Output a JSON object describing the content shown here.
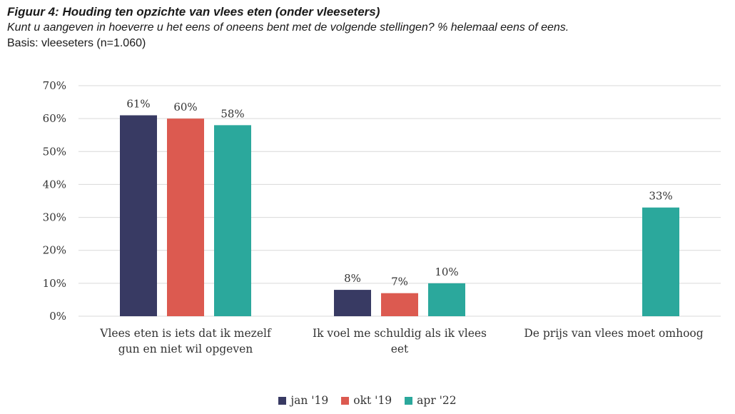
{
  "header": {
    "title": "Figuur 4: Houding ten opzichte van vlees eten (onder vleeseters)",
    "subtitle": "Kunt u aangeven in hoeverre u het eens of oneens bent met de volgende stellingen? % helemaal eens of eens.",
    "basis": "Basis: vleeseters (n=1.060)"
  },
  "chart_data": {
    "type": "bar",
    "title": "Figuur 4: Houding ten opzichte van vlees eten (onder vleeseters)",
    "categories": [
      [
        "Vlees eten is iets dat ik mezelf",
        "gun en niet wil opgeven"
      ],
      [
        "Ik voel me schuldig als ik vlees",
        "eet"
      ],
      [
        "De prijs van vlees moet omhoog"
      ]
    ],
    "series": [
      {
        "name": "jan '19",
        "color": "#383a63",
        "values": [
          61,
          8,
          null
        ],
        "labels": [
          "61%",
          "8%",
          ""
        ]
      },
      {
        "name": "okt '19",
        "color": "#dc5a50",
        "values": [
          60,
          7,
          null
        ],
        "labels": [
          "60%",
          "7%",
          ""
        ]
      },
      {
        "name": "apr '22",
        "color": "#2ba89c",
        "values": [
          58,
          10,
          33
        ],
        "labels": [
          "58%",
          "10%",
          "33%"
        ]
      }
    ],
    "yticks": [
      "0%",
      "10%",
      "20%",
      "30%",
      "40%",
      "50%",
      "60%",
      "70%"
    ],
    "ylim": [
      0,
      70
    ],
    "grid": true,
    "legend_position": "bottom",
    "gridColor": "#d9d9d9"
  }
}
